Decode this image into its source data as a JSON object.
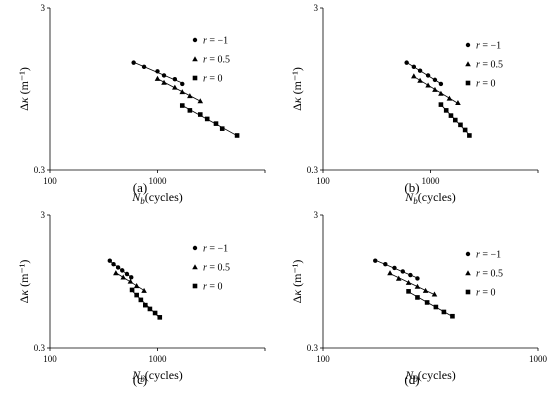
{
  "chart_data": [
    {
      "type": "scatter",
      "panel": "(a)",
      "xscale": "log",
      "yscale": "log",
      "xlim": [
        100,
        10000
      ],
      "ylim": [
        0.3,
        3
      ],
      "x_ticks": [
        "100",
        "1000"
      ],
      "y_ticks": [
        "3",
        "0.3"
      ],
      "xlabel": "N_b(cycles)",
      "ylabel": "Δκ (m⁻¹)",
      "legend": "right",
      "series": [
        {
          "name": "r = −1",
          "marker": "circle",
          "x": [
            600,
            750,
            1000,
            1150,
            1450,
            1700
          ],
          "y": [
            1.38,
            1.3,
            1.22,
            1.15,
            1.09,
            1.02
          ]
        },
        {
          "name": "r = 0.5",
          "marker": "triangle",
          "x": [
            1000,
            1150,
            1450,
            1700,
            2000,
            2500
          ],
          "y": [
            1.1,
            1.04,
            0.97,
            0.91,
            0.86,
            0.8
          ]
        },
        {
          "name": "r = 0",
          "marker": "square",
          "x": [
            1700,
            2000,
            2500,
            2900,
            3500,
            4000,
            5500
          ],
          "y": [
            0.75,
            0.7,
            0.66,
            0.62,
            0.58,
            0.54,
            0.49
          ]
        }
      ]
    },
    {
      "type": "scatter",
      "panel": "(b)",
      "xscale": "log",
      "yscale": "log",
      "xlim": [
        100,
        10000
      ],
      "ylim": [
        0.3,
        3
      ],
      "x_ticks": [
        "100",
        "1000"
      ],
      "y_ticks": [
        "3",
        "0.3"
      ],
      "xlabel": "N_b(cycles)",
      "ylabel": "Δκ (m⁻¹)",
      "legend": "right",
      "series": [
        {
          "name": "r = −1",
          "marker": "circle",
          "x": [
            600,
            700,
            800,
            950,
            1100,
            1250
          ],
          "y": [
            1.38,
            1.3,
            1.23,
            1.15,
            1.08,
            1.02
          ]
        },
        {
          "name": "r = 0.5",
          "marker": "triangle",
          "x": [
            700,
            800,
            950,
            1100,
            1250,
            1500,
            1800
          ],
          "y": [
            1.14,
            1.07,
            1.0,
            0.94,
            0.89,
            0.83,
            0.78
          ]
        },
        {
          "name": "r = 0",
          "marker": "square",
          "x": [
            1250,
            1400,
            1550,
            1700,
            1900,
            2100,
            2300
          ],
          "y": [
            0.76,
            0.7,
            0.65,
            0.61,
            0.57,
            0.53,
            0.49
          ]
        }
      ]
    },
    {
      "type": "scatter",
      "panel": "(c)",
      "xscale": "log",
      "yscale": "log",
      "xlim": [
        100,
        10000
      ],
      "ylim": [
        0.3,
        3
      ],
      "x_ticks": [
        "100",
        "1000"
      ],
      "y_ticks": [
        "3",
        "0.3"
      ],
      "xlabel": "N_b(cycles)",
      "ylabel": "Δκ (m⁻¹)",
      "legend": "right",
      "series": [
        {
          "name": "r = −1",
          "marker": "circle",
          "x": [
            360,
            390,
            430,
            470,
            520,
            570
          ],
          "y": [
            1.36,
            1.28,
            1.21,
            1.15,
            1.08,
            1.02
          ]
        },
        {
          "name": "r = 0.5",
          "marker": "triangle",
          "x": [
            410,
            480,
            560,
            640,
            750
          ],
          "y": [
            1.1,
            1.02,
            0.95,
            0.88,
            0.81
          ]
        },
        {
          "name": "r = 0",
          "marker": "square",
          "x": [
            580,
            640,
            700,
            770,
            850,
            950,
            1050
          ],
          "y": [
            0.82,
            0.75,
            0.69,
            0.63,
            0.59,
            0.55,
            0.51
          ]
        }
      ]
    },
    {
      "type": "scatter",
      "panel": "(d)",
      "xscale": "log",
      "yscale": "log",
      "xlim": [
        100,
        1000
      ],
      "ylim": [
        0.3,
        3
      ],
      "x_ticks": [
        "100",
        "1000"
      ],
      "y_ticks": [
        "3",
        "0.3"
      ],
      "xlabel": "N_b(cycles)",
      "ylabel": "Δκ (m⁻¹)",
      "legend": "right",
      "series": [
        {
          "name": "r = −1",
          "marker": "circle",
          "x": [
            175,
            195,
            215,
            235,
            255,
            275
          ],
          "y": [
            1.36,
            1.28,
            1.2,
            1.13,
            1.06,
            1.0
          ]
        },
        {
          "name": "r = 0.5",
          "marker": "triangle",
          "x": [
            205,
            225,
            250,
            275,
            300,
            330
          ],
          "y": [
            1.1,
            1.0,
            0.93,
            0.87,
            0.81,
            0.76
          ]
        },
        {
          "name": "r = 0",
          "marker": "square",
          "x": [
            250,
            275,
            305,
            335,
            365,
            400
          ],
          "y": [
            0.8,
            0.72,
            0.66,
            0.61,
            0.56,
            0.52
          ]
        }
      ]
    }
  ]
}
